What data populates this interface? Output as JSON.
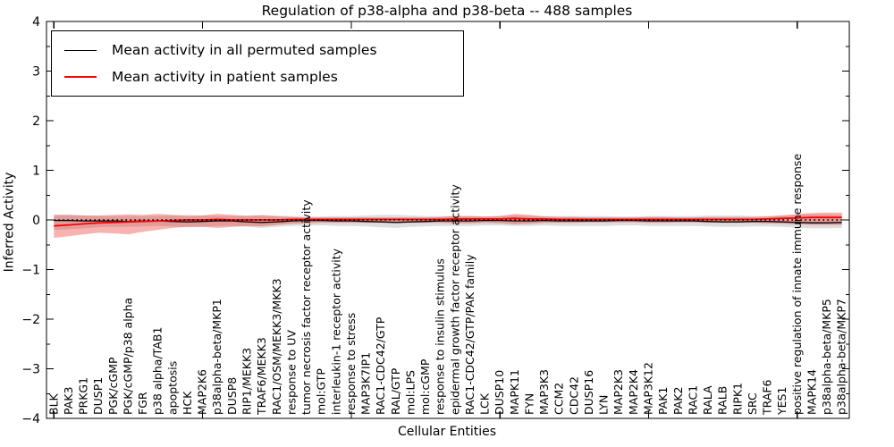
{
  "chart_data": {
    "type": "line",
    "title": "Regulation of p38-alpha and p38-beta -- 488 samples",
    "xlabel": "Cellular Entities",
    "ylabel": "Inferred Activity",
    "ylim": [
      -4,
      4
    ],
    "yticks": [
      -4,
      -3,
      -2,
      -1,
      0,
      1,
      2,
      3,
      4
    ],
    "y_minor_step": 0.5,
    "x_major_tick_indices": [
      0,
      10,
      20,
      30,
      40,
      50
    ],
    "grid": false,
    "legend_position": "upper left",
    "categories": [
      "BLK",
      "PAK3",
      "PRKG1",
      "DUSP1",
      "PGK/cGMP",
      "PGK/cGMP/p38 alpha",
      "FGR",
      "p38 alpha/TAB1",
      "apoptosis",
      "HCK",
      "MAP2K6",
      "p38alpha-beta/MKP1",
      "DUSP8",
      "RIP1/MEKK3",
      "TRAF6/MEKK3",
      "RAC1/OSM/MEKK3/MKK3",
      "response to UV",
      "tumor necrosis factor receptor activity",
      "mol:GTP",
      "interleukin-1 receptor activity",
      "response to stress",
      "MAP3K7IP1",
      "RAC1-CDC42/GTP",
      "RAL/GTP",
      "mol:LPS",
      "mol:cGMP",
      "response to insulin stimulus",
      "epidermal growth factor receptor activity",
      "RAC1-CDC42/GTP/PAK family",
      "LCK",
      "DUSP10",
      "MAPK11",
      "FYN",
      "MAP3K3",
      "CCM2",
      "CDC42",
      "DUSP16",
      "LYN",
      "MAP2K3",
      "MAP2K4",
      "MAP3K12",
      "PAK1",
      "PAK2",
      "RAC1",
      "RALA",
      "RALB",
      "RIPK1",
      "SRC",
      "TRAF6",
      "YES1",
      "positive regulation of innate immune response",
      "MAPK14",
      "p38alpha-beta/MKP5",
      "p38alpha-beta/MKP7"
    ],
    "series": [
      {
        "name": "Mean activity in all permuted samples",
        "color": "#000000",
        "width": 1.3,
        "values": [
          -0.01,
          -0.01,
          -0.02,
          -0.02,
          -0.02,
          -0.03,
          -0.02,
          -0.02,
          -0.03,
          -0.04,
          -0.03,
          -0.02,
          -0.02,
          -0.04,
          -0.05,
          -0.04,
          -0.02,
          -0.01,
          -0.01,
          -0.02,
          -0.02,
          -0.03,
          -0.04,
          -0.05,
          -0.04,
          -0.03,
          -0.02,
          -0.02,
          -0.02,
          -0.01,
          -0.01,
          -0.02,
          -0.02,
          -0.01,
          -0.02,
          -0.02,
          -0.02,
          -0.02,
          -0.01,
          -0.01,
          -0.02,
          -0.02,
          -0.02,
          -0.02,
          -0.03,
          -0.04,
          -0.04,
          -0.03,
          -0.03,
          -0.04,
          -0.05,
          -0.06,
          -0.06,
          -0.05
        ]
      },
      {
        "name": "Mean activity in patient samples",
        "color": "#ff0000",
        "width": 1.8,
        "values": [
          -0.12,
          -0.1,
          -0.08,
          -0.06,
          -0.05,
          -0.04,
          -0.03,
          -0.02,
          -0.01,
          0.0,
          0.0,
          0.01,
          0.0,
          0.0,
          0.0,
          0.0,
          0.01,
          0.01,
          0.01,
          0.01,
          0.01,
          0.01,
          0.01,
          0.01,
          0.01,
          0.01,
          0.01,
          0.02,
          0.02,
          0.02,
          0.02,
          0.03,
          0.02,
          0.02,
          0.01,
          0.01,
          0.01,
          0.01,
          0.01,
          0.01,
          0.01,
          0.01,
          0.01,
          0.01,
          0.01,
          0.01,
          0.01,
          0.01,
          0.02,
          0.03,
          0.04,
          0.05,
          0.05,
          0.05
        ]
      }
    ],
    "bands": [
      {
        "name": "permuted samples band",
        "color": "rgba(90,90,90,0.20)",
        "hi": [
          0.1,
          0.1,
          0.09,
          0.08,
          0.08,
          0.08,
          0.08,
          0.08,
          0.09,
          0.1,
          0.09,
          0.08,
          0.08,
          0.09,
          0.1,
          0.09,
          0.08,
          0.07,
          0.07,
          0.08,
          0.08,
          0.09,
          0.1,
          0.1,
          0.09,
          0.08,
          0.08,
          0.08,
          0.08,
          0.07,
          0.08,
          0.09,
          0.08,
          0.08,
          0.08,
          0.08,
          0.08,
          0.08,
          0.07,
          0.07,
          0.08,
          0.08,
          0.08,
          0.08,
          0.09,
          0.09,
          0.09,
          0.08,
          0.08,
          0.09,
          0.1,
          0.11,
          0.11,
          0.1
        ],
        "lo": [
          -0.2,
          -0.19,
          -0.17,
          -0.15,
          -0.14,
          -0.14,
          -0.13,
          -0.12,
          -0.13,
          -0.15,
          -0.14,
          -0.12,
          -0.12,
          -0.14,
          -0.16,
          -0.14,
          -0.12,
          -0.11,
          -0.11,
          -0.12,
          -0.12,
          -0.13,
          -0.15,
          -0.16,
          -0.14,
          -0.13,
          -0.12,
          -0.12,
          -0.12,
          -0.11,
          -0.11,
          -0.12,
          -0.12,
          -0.11,
          -0.12,
          -0.12,
          -0.12,
          -0.12,
          -0.11,
          -0.11,
          -0.12,
          -0.12,
          -0.12,
          -0.12,
          -0.13,
          -0.14,
          -0.14,
          -0.13,
          -0.13,
          -0.14,
          -0.16,
          -0.17,
          -0.17,
          -0.16
        ]
      },
      {
        "name": "patient samples band",
        "color": "rgba(235,32,25,0.34)",
        "hi": [
          0.1,
          0.1,
          0.09,
          0.09,
          0.1,
          0.11,
          0.1,
          0.12,
          0.1,
          0.08,
          0.09,
          0.12,
          0.1,
          0.08,
          0.09,
          0.07,
          0.06,
          0.05,
          0.05,
          0.05,
          0.05,
          0.05,
          0.05,
          0.05,
          0.05,
          0.05,
          0.06,
          0.08,
          0.08,
          0.07,
          0.08,
          0.12,
          0.1,
          0.07,
          0.06,
          0.06,
          0.05,
          0.05,
          0.05,
          0.05,
          0.06,
          0.06,
          0.05,
          0.05,
          0.06,
          0.06,
          0.06,
          0.06,
          0.07,
          0.09,
          0.12,
          0.14,
          0.15,
          0.15
        ],
        "lo": [
          -0.36,
          -0.33,
          -0.29,
          -0.26,
          -0.27,
          -0.29,
          -0.24,
          -0.2,
          -0.16,
          -0.14,
          -0.14,
          -0.16,
          -0.14,
          -0.12,
          -0.13,
          -0.1,
          -0.08,
          -0.07,
          -0.06,
          -0.06,
          -0.06,
          -0.06,
          -0.06,
          -0.06,
          -0.06,
          -0.06,
          -0.06,
          -0.07,
          -0.07,
          -0.06,
          -0.07,
          -0.09,
          -0.08,
          -0.06,
          -0.06,
          -0.06,
          -0.05,
          -0.05,
          -0.05,
          -0.05,
          -0.06,
          -0.06,
          -0.05,
          -0.05,
          -0.06,
          -0.06,
          -0.06,
          -0.06,
          -0.07,
          -0.08,
          -0.09,
          -0.1,
          -0.1,
          -0.1
        ]
      }
    ],
    "reference_line": {
      "y": 0,
      "style": "dotted",
      "color": "#000000"
    }
  },
  "colors": {
    "frame": "#000000",
    "background": "#ffffff",
    "permuted": "#000000",
    "patient": "#ff0000"
  }
}
